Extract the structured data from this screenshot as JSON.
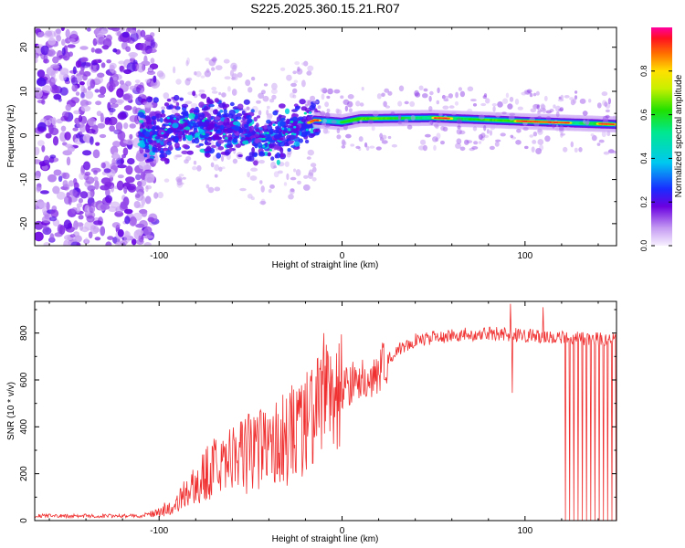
{
  "title": "S225.2025.360.15.21.R07",
  "chart_data": [
    {
      "type": "heatmap",
      "xlabel": "Height of straight line (km)",
      "ylabel": "Frequency (Hz)",
      "xlim": [
        -168,
        150
      ],
      "ylim": [
        -25,
        24.5
      ],
      "xticks": [
        -100,
        0,
        100
      ],
      "yticks": [
        -20,
        -10,
        0,
        10,
        20
      ],
      "colorbar": {
        "label": "Normalized spectral amplitude",
        "range": [
          0,
          1
        ],
        "ticks": [
          "0.0",
          "0.2",
          "0.4",
          "0.6",
          "0.8"
        ],
        "tick_values": [
          0,
          0.2,
          0.4,
          0.6,
          0.8
        ]
      },
      "features": {
        "noise_region_km": [
          -168,
          -110
        ],
        "transition_region_km": [
          -110,
          -15
        ],
        "carrier_region_km": [
          -15,
          150
        ],
        "carrier_frequency_hz": [
          [
            -100,
            0.5
          ],
          [
            -80,
            2.5
          ],
          [
            -60,
            2.0
          ],
          [
            -40,
            -1.0
          ],
          [
            -25,
            1.5
          ],
          [
            -15,
            3.5
          ],
          [
            0,
            3.0
          ],
          [
            10,
            3.8
          ],
          [
            50,
            4.0
          ],
          [
            100,
            3.2
          ],
          [
            150,
            2.5
          ]
        ],
        "peak_amplitude_regions_km": [
          [
            -18,
            -12
          ],
          [
            50,
            60
          ],
          [
            95,
            125
          ],
          [
            140,
            150
          ]
        ]
      }
    },
    {
      "type": "line",
      "xlabel": "Height of straight line (km)",
      "ylabel": "SNR (10 * v/v)",
      "xlim": [
        -168,
        150
      ],
      "ylim": [
        0,
        935
      ],
      "xticks": [
        -100,
        0,
        100
      ],
      "yticks": [
        0,
        200,
        400,
        600,
        800
      ],
      "color": "#f03030",
      "trend_points": [
        [
          -168,
          20
        ],
        [
          -110,
          20
        ],
        [
          -100,
          40
        ],
        [
          -90,
          90
        ],
        [
          -80,
          180
        ],
        [
          -70,
          260
        ],
        [
          -60,
          300
        ],
        [
          -50,
          330
        ],
        [
          -40,
          360
        ],
        [
          -30,
          400
        ],
        [
          -20,
          460
        ],
        [
          -12,
          520
        ],
        [
          -6,
          520
        ],
        [
          0,
          570
        ],
        [
          10,
          600
        ],
        [
          20,
          640
        ],
        [
          30,
          730
        ],
        [
          40,
          770
        ],
        [
          60,
          790
        ],
        [
          80,
          800
        ],
        [
          100,
          790
        ],
        [
          120,
          780
        ],
        [
          150,
          770
        ]
      ],
      "dropouts_km": [
        [
          120,
          150
        ]
      ],
      "notable_values": [
        {
          "x": -10,
          "y": 800
        },
        {
          "x": 92,
          "y": 925
        },
        {
          "x": 93,
          "y": 545
        },
        {
          "x": 110,
          "y": 910
        }
      ]
    }
  ]
}
